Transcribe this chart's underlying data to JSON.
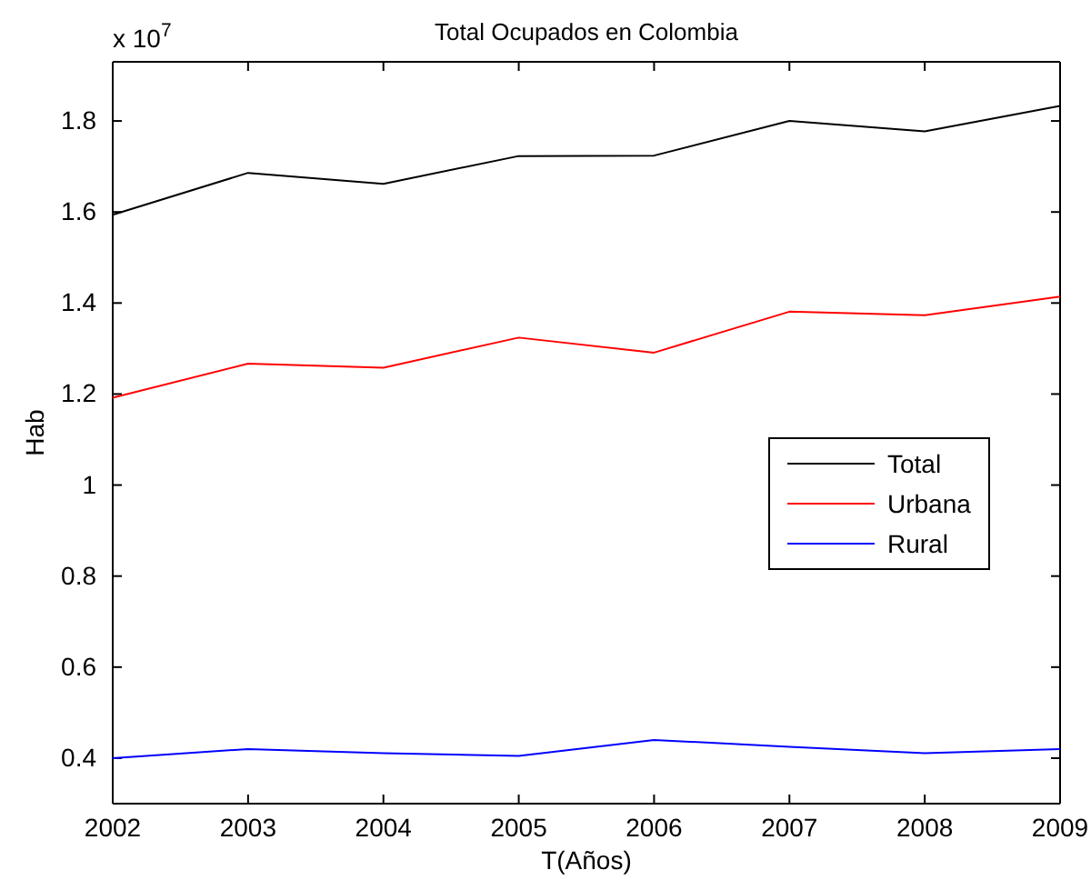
{
  "chart_data": {
    "type": "line",
    "title": "Total Ocupados en Colombia",
    "xlabel": "T(Años)",
    "ylabel": "Hab",
    "annotations": [
      "x 10$^{7}$"
    ],
    "x": [
      2002,
      2003,
      2004,
      2005,
      2006,
      2007,
      2008,
      2009
    ],
    "series": [
      {
        "name": "Total",
        "color": "#000000",
        "values": [
          1.594,
          1.686,
          1.662,
          1.723,
          1.724,
          1.8,
          1.777,
          1.833
        ]
      },
      {
        "name": "Urbana",
        "color": "#ff0000",
        "values": [
          1.192,
          1.267,
          1.258,
          1.324,
          1.291,
          1.381,
          1.373,
          1.414
        ]
      },
      {
        "name": "Rural",
        "color": "#0000ff",
        "values": [
          0.4,
          0.42,
          0.411,
          0.405,
          0.44,
          0.425,
          0.411,
          0.42
        ]
      }
    ],
    "xlim": [
      2002,
      2009
    ],
    "xticks": [
      2002,
      2003,
      2004,
      2005,
      2006,
      2007,
      2008,
      2009
    ],
    "ylim": [
      0.3,
      1.93
    ],
    "yticks": [
      0.4,
      0.6,
      0.8,
      1,
      1.2,
      1.4,
      1.6,
      1.8
    ],
    "grid": false,
    "legend": "right",
    "marker": "none",
    "line_style": "solid"
  }
}
